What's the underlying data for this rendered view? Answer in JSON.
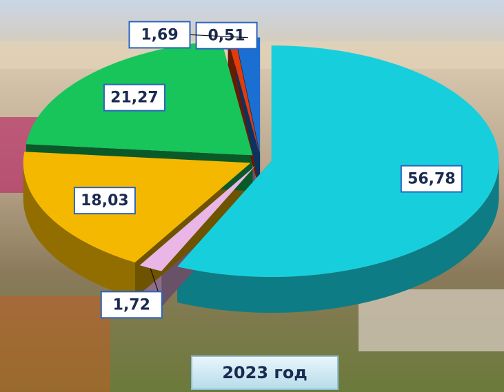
{
  "chart_data": {
    "type": "pie",
    "title": "2023 год",
    "values": [
      56.78,
      1.72,
      18.03,
      21.27,
      0.51,
      1.69
    ],
    "value_labels": [
      "56,78",
      "1,72",
      "18,03",
      "21,27",
      "0,51",
      "1,69"
    ],
    "colors": [
      "#17cfdc",
      "#e9b6e6",
      "#f4b800",
      "#17c55a",
      "#e23b0c",
      "#1b6fd2"
    ]
  }
}
